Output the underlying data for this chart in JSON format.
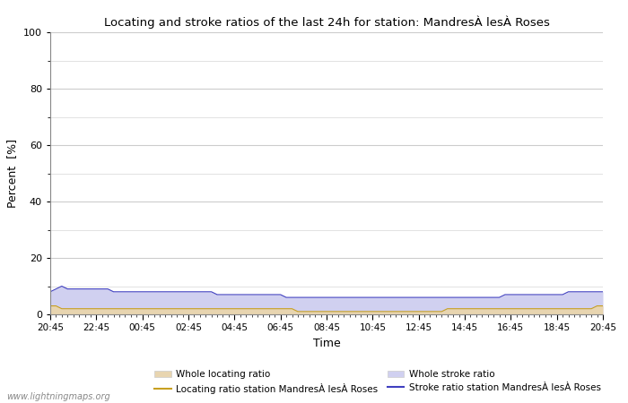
{
  "title": "Locating and stroke ratios of the last 24h for station: MandresÀ lesÀ Roses",
  "xlabel": "Time",
  "ylabel": "Percent  [%]",
  "xlim": [
    0,
    96
  ],
  "ylim": [
    0,
    100
  ],
  "yticks": [
    0,
    20,
    40,
    60,
    80,
    100
  ],
  "ytick_minor": [
    10,
    30,
    50,
    70,
    90
  ],
  "xtick_labels": [
    "20:45",
    "22:45",
    "00:45",
    "02:45",
    "04:45",
    "06:45",
    "08:45",
    "10:45",
    "12:45",
    "14:45",
    "16:45",
    "18:45",
    "20:45"
  ],
  "xtick_positions": [
    0,
    8,
    16,
    24,
    32,
    40,
    48,
    56,
    64,
    72,
    80,
    88,
    96
  ],
  "bg_color": "#ffffff",
  "plot_bg_color": "#ffffff",
  "grid_color": "#cccccc",
  "watermark": "www.lightningmaps.org",
  "whole_locating_color": "#e8d5b0",
  "whole_stroke_color": "#d0d0f0",
  "locating_line_color": "#c8a020",
  "stroke_line_color": "#4040c0",
  "legend_locating_patch": "Whole locating ratio",
  "legend_locating_line": "Locating ratio station MandresÀ lesÀ Roses",
  "legend_stroke_patch": "Whole stroke ratio",
  "legend_stroke_line": "Stroke ratio station MandresÀ lesÀ Roses",
  "whole_locating_values": [
    3,
    3,
    2,
    2,
    2,
    2,
    2,
    2,
    2,
    2,
    2,
    2,
    2,
    2,
    2,
    2,
    2,
    2,
    2,
    2,
    2,
    2,
    2,
    2,
    2,
    2,
    2,
    2,
    2,
    2,
    2,
    2,
    2,
    2,
    2,
    2,
    2,
    2,
    2,
    2,
    2,
    2,
    2,
    1,
    1,
    1,
    1,
    1,
    1,
    1,
    1,
    1,
    1,
    1,
    1,
    1,
    1,
    1,
    1,
    1,
    1,
    1,
    1,
    1,
    1,
    1,
    1,
    1,
    1,
    2,
    2,
    2,
    2,
    2,
    2,
    2,
    2,
    2,
    2,
    2,
    2,
    2,
    2,
    2,
    2,
    2,
    2,
    2,
    2,
    2,
    2,
    2,
    2,
    2,
    2,
    3,
    3
  ],
  "whole_stroke_values": [
    8,
    9,
    10,
    9,
    9,
    9,
    9,
    9,
    9,
    9,
    9,
    8,
    8,
    8,
    8,
    8,
    8,
    8,
    8,
    8,
    8,
    8,
    8,
    8,
    8,
    8,
    8,
    8,
    8,
    7,
    7,
    7,
    7,
    7,
    7,
    7,
    7,
    7,
    7,
    7,
    7,
    6,
    6,
    6,
    6,
    6,
    6,
    6,
    6,
    6,
    6,
    6,
    6,
    6,
    6,
    6,
    6,
    6,
    6,
    6,
    6,
    6,
    6,
    6,
    6,
    6,
    6,
    6,
    6,
    6,
    6,
    6,
    6,
    6,
    6,
    6,
    6,
    6,
    6,
    7,
    7,
    7,
    7,
    7,
    7,
    7,
    7,
    7,
    7,
    7,
    8,
    8,
    8,
    8,
    8,
    8,
    8
  ],
  "locating_line_values": [
    3,
    3,
    2,
    2,
    2,
    2,
    2,
    2,
    2,
    2,
    2,
    2,
    2,
    2,
    2,
    2,
    2,
    2,
    2,
    2,
    2,
    2,
    2,
    2,
    2,
    2,
    2,
    2,
    2,
    2,
    2,
    2,
    2,
    2,
    2,
    2,
    2,
    2,
    2,
    2,
    2,
    2,
    2,
    1,
    1,
    1,
    1,
    1,
    1,
    1,
    1,
    1,
    1,
    1,
    1,
    1,
    1,
    1,
    1,
    1,
    1,
    1,
    1,
    1,
    1,
    1,
    1,
    1,
    1,
    2,
    2,
    2,
    2,
    2,
    2,
    2,
    2,
    2,
    2,
    2,
    2,
    2,
    2,
    2,
    2,
    2,
    2,
    2,
    2,
    2,
    2,
    2,
    2,
    2,
    2,
    3,
    3
  ],
  "stroke_line_values": [
    8,
    9,
    10,
    9,
    9,
    9,
    9,
    9,
    9,
    9,
    9,
    8,
    8,
    8,
    8,
    8,
    8,
    8,
    8,
    8,
    8,
    8,
    8,
    8,
    8,
    8,
    8,
    8,
    8,
    7,
    7,
    7,
    7,
    7,
    7,
    7,
    7,
    7,
    7,
    7,
    7,
    6,
    6,
    6,
    6,
    6,
    6,
    6,
    6,
    6,
    6,
    6,
    6,
    6,
    6,
    6,
    6,
    6,
    6,
    6,
    6,
    6,
    6,
    6,
    6,
    6,
    6,
    6,
    6,
    6,
    6,
    6,
    6,
    6,
    6,
    6,
    6,
    6,
    6,
    7,
    7,
    7,
    7,
    7,
    7,
    7,
    7,
    7,
    7,
    7,
    8,
    8,
    8,
    8,
    8,
    8,
    8
  ]
}
